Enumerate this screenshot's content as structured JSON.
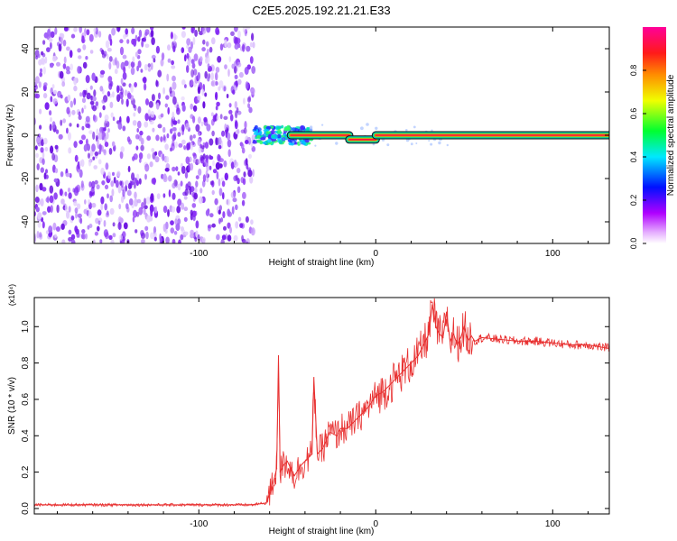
{
  "title": "C2E5.2025.192.21.21.E33",
  "colors": {
    "signal": "#e83030",
    "scatter": "#7a1ff0",
    "frame": "#000000"
  },
  "chart_data": [
    {
      "type": "heatmap",
      "xlabel": "Height of straight line (km)",
      "ylabel": "Frequency (Hz)",
      "xlim": [
        -193,
        132
      ],
      "ylim": [
        -50,
        50
      ],
      "xticks": [
        -100,
        0,
        100
      ],
      "xtick_labels": [
        "-100",
        "0",
        "100"
      ],
      "yticks": [
        -40,
        -20,
        0,
        20,
        40
      ],
      "ytick_labels": [
        "-40",
        "-20",
        "0",
        "20",
        "40"
      ],
      "grid": false,
      "noise_region_x": [
        -193,
        -69
      ],
      "transition_region_x": [
        -69,
        -48
      ],
      "line_segments": [
        {
          "x": [
            -48,
            -15
          ],
          "freq": 0
        },
        {
          "x": [
            -15,
            0
          ],
          "freq": -2
        },
        {
          "x": [
            0,
            132
          ],
          "freq": 0
        }
      ],
      "colorbar": {
        "label": "Normalized spectral amplitude",
        "range": [
          0,
          1
        ],
        "ticks": [
          0,
          0.2,
          0.4,
          0.6,
          0.8
        ],
        "tick_labels": [
          "0.0",
          "0.2",
          "0.4",
          "0.6",
          "0.8"
        ],
        "colors": [
          "#ffffff",
          "#cc00ff",
          "#0000ff",
          "#00ffff",
          "#00ff00",
          "#ffff00",
          "#ff8000",
          "#ff0000",
          "#ff0099"
        ]
      }
    },
    {
      "type": "line",
      "xlabel": "Height of straight line (km)",
      "ylabel": "SNR (10 * v/v)",
      "y_multiplier": "(x10⁴)",
      "xlim": [
        -193,
        132
      ],
      "ylim": [
        -0.03,
        1.16
      ],
      "xticks": [
        -100,
        0,
        100
      ],
      "xtick_labels": [
        "-100",
        "0",
        "100"
      ],
      "yticks": [
        0,
        0.2,
        0.4,
        0.6,
        0.8,
        1.0
      ],
      "ytick_labels": [
        "0.0",
        "0.2",
        "0.4",
        "0.6",
        "0.8",
        "1.0"
      ],
      "grid": false,
      "series": [
        {
          "color": "#e83030",
          "x": [
            -193,
            -150,
            -100,
            -70,
            -62,
            -59,
            -56,
            -55,
            -54,
            -52,
            -50,
            -46,
            -42,
            -36,
            -35,
            -33,
            -30,
            -26,
            -22,
            -20,
            -16,
            -12,
            -8,
            -4,
            0,
            4,
            8,
            12,
            16,
            20,
            24,
            26,
            28,
            30,
            32,
            34,
            36,
            38,
            40,
            42,
            44,
            46,
            48,
            50,
            52,
            54,
            56,
            60,
            70,
            80,
            90,
            100,
            110,
            120,
            126,
            132
          ],
          "y": [
            0.02,
            0.02,
            0.02,
            0.02,
            0.03,
            0.1,
            0.22,
            0.84,
            0.2,
            0.24,
            0.26,
            0.18,
            0.24,
            0.3,
            0.72,
            0.3,
            0.33,
            0.42,
            0.4,
            0.44,
            0.44,
            0.48,
            0.52,
            0.56,
            0.62,
            0.64,
            0.68,
            0.72,
            0.76,
            0.8,
            0.84,
            0.88,
            0.92,
            0.96,
            1.12,
            1.0,
            0.96,
            0.94,
            1.08,
            0.92,
            0.96,
            0.9,
            0.94,
            1.0,
            0.92,
            0.95,
            0.92,
            0.94,
            0.93,
            0.92,
            0.92,
            0.91,
            0.9,
            0.9,
            0.89,
            0.88
          ]
        }
      ]
    }
  ]
}
